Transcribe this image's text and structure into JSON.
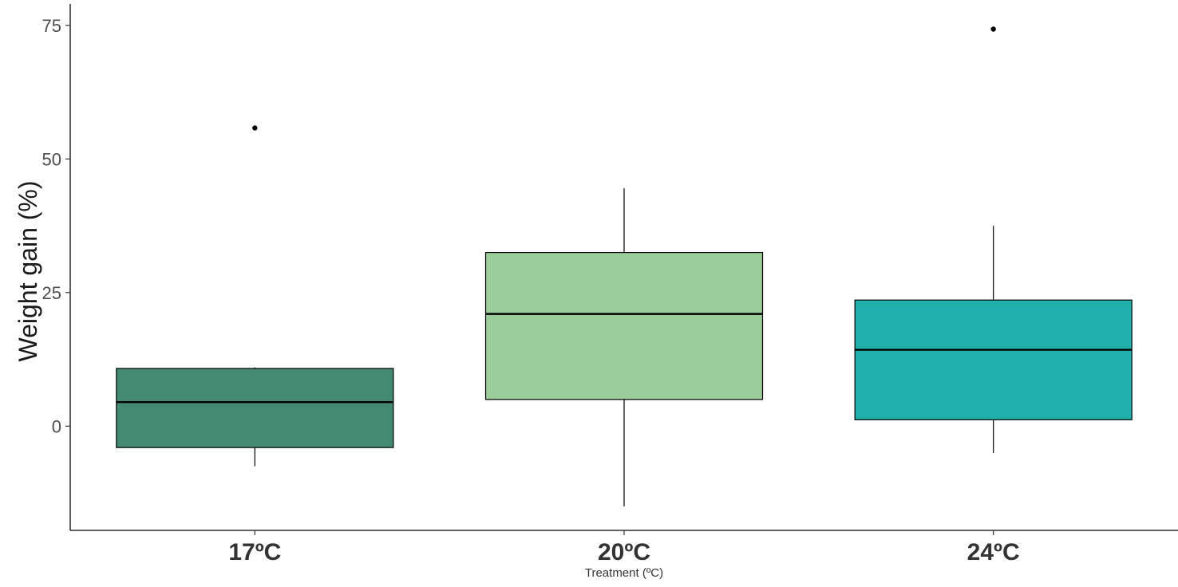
{
  "chart_data": {
    "type": "boxplot",
    "title": "",
    "xlabel": "Treatment (ºC)",
    "ylabel": "Weight gain (%)",
    "categories": [
      "17ºC",
      "20ºC",
      "24ºC"
    ],
    "ylim": [
      -19.5,
      79
    ],
    "yticks": [
      0,
      25,
      50,
      75
    ],
    "grid": false,
    "legend": "none",
    "boxes": [
      {
        "category": "17ºC",
        "whisker_low": -7.5,
        "q1": -4,
        "median": 4.5,
        "q3": 10.8,
        "whisker_high": 11,
        "outliers": [
          55.8
        ],
        "color": "#448A73"
      },
      {
        "category": "20ºC",
        "whisker_low": -15,
        "q1": 5,
        "median": 21,
        "q3": 32.5,
        "whisker_high": 44.5,
        "outliers": [],
        "color": "#9BCD9A"
      },
      {
        "category": "24ºC",
        "whisker_low": -5,
        "q1": 1.2,
        "median": 14.3,
        "q3": 23.6,
        "whisker_high": 37.5,
        "outliers": [
          74.3
        ],
        "color": "#20B0AB"
      }
    ]
  }
}
